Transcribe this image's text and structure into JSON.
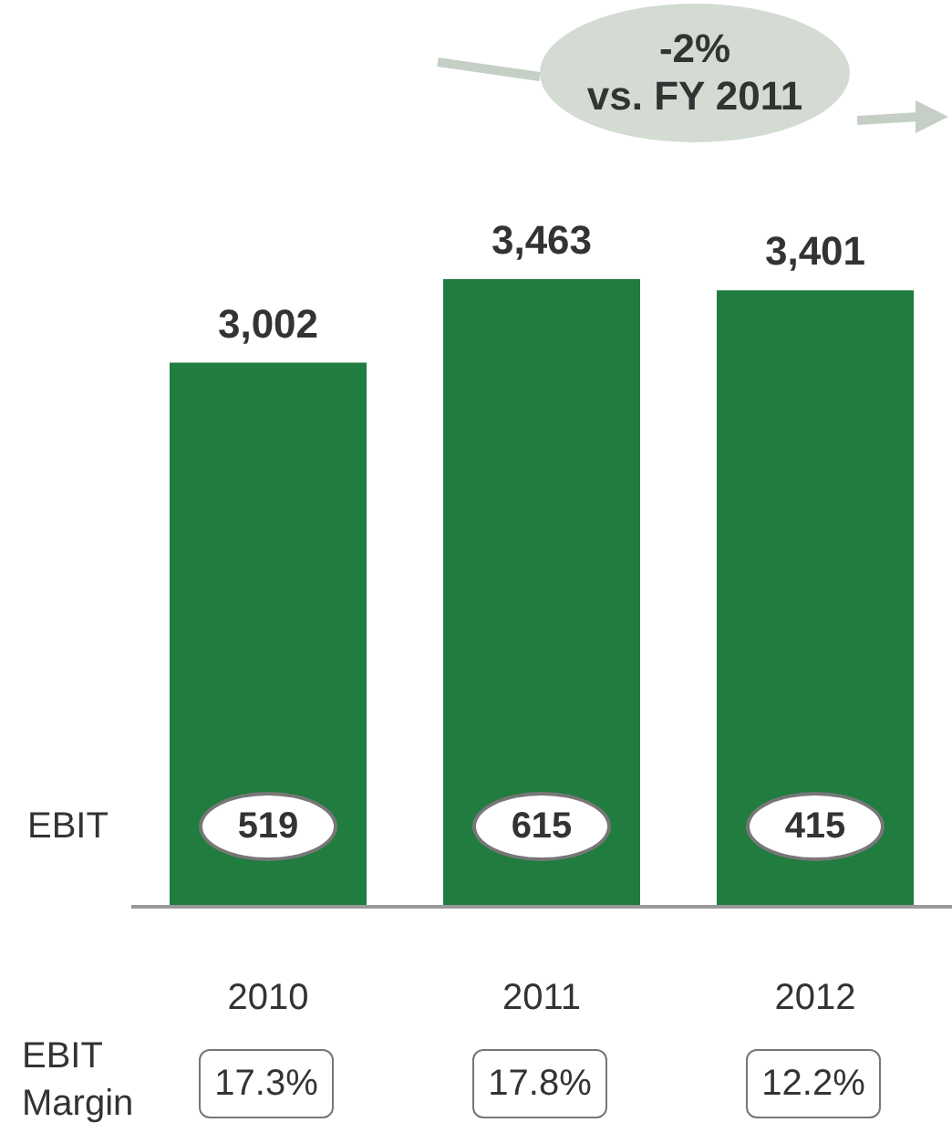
{
  "chart_data": {
    "type": "bar",
    "categories": [
      "2010",
      "2011",
      "2012"
    ],
    "values": [
      3002,
      3463,
      3401
    ],
    "value_labels": [
      "3,002",
      "3,463",
      "3,401"
    ],
    "color": "#217c3f",
    "grid": false,
    "annotations": [
      "-2%",
      "vs. FY 2011",
      "EBIT",
      "EBIT Margin",
      "519",
      "615",
      "415",
      "17.3%",
      "17.8%",
      "12.2%"
    ]
  }
}
